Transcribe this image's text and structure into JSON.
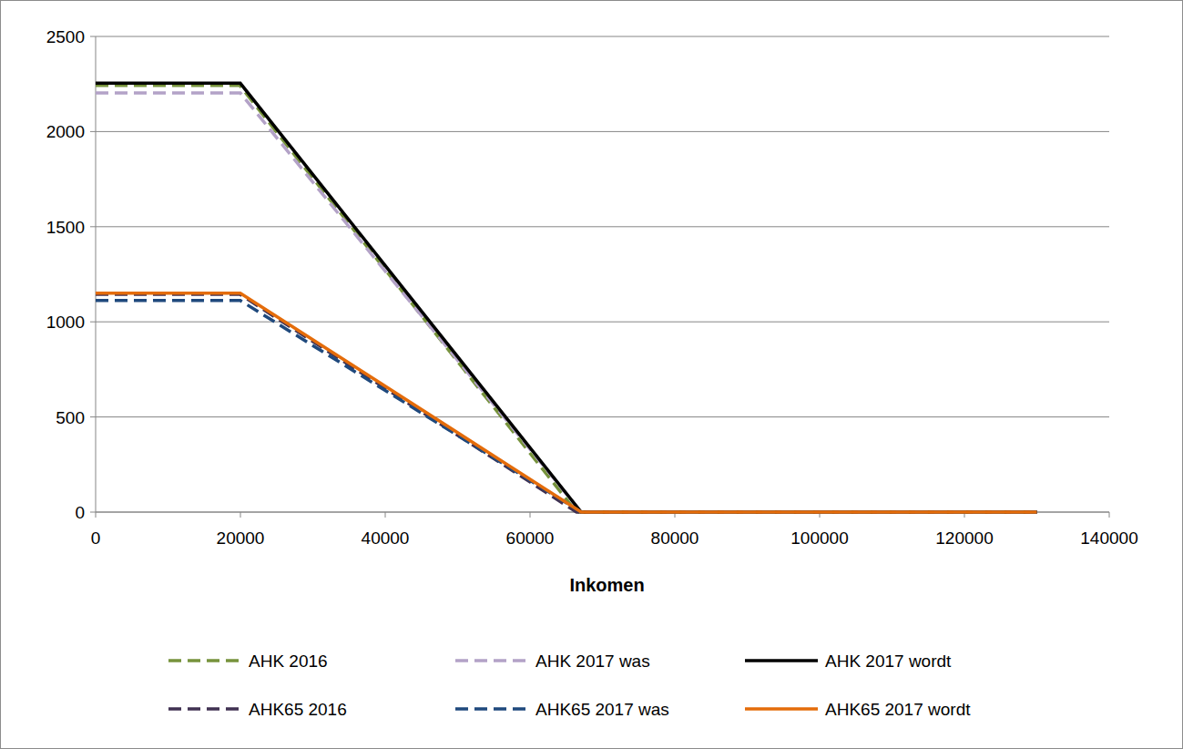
{
  "chart_data": {
    "type": "line",
    "x_label": "Inkomen",
    "xlim": [
      0,
      140000
    ],
    "xticks": [
      0,
      20000,
      40000,
      60000,
      80000,
      100000,
      120000,
      140000
    ],
    "ylim": [
      0,
      2500
    ],
    "yticks": [
      0,
      500,
      1000,
      1500,
      2000,
      2500
    ],
    "grid": true,
    "legend": "bottom",
    "series": [
      {
        "name": "AHK 2016",
        "color": "#77933c",
        "line_style": "dashed",
        "x": [
          0,
          19922,
          66417,
          130000
        ],
        "values": [
          2242,
          2242,
          0,
          0
        ]
      },
      {
        "name": "AHK 2017 was",
        "color": "#b3a2c7",
        "line_style": "dashed",
        "x": [
          0,
          19982,
          67068,
          130000
        ],
        "values": [
          2203,
          2203,
          0,
          0
        ]
      },
      {
        "name": "AHK 2017 wordt",
        "color": "#000000",
        "line_style": "solid",
        "x": [
          0,
          19982,
          67068,
          130000
        ],
        "values": [
          2254,
          2254,
          0,
          0
        ]
      },
      {
        "name": "AHK65 2016",
        "color": "#403152",
        "line_style": "dashed",
        "x": [
          0,
          19922,
          66417,
          130000
        ],
        "values": [
          1145,
          1145,
          0,
          0
        ]
      },
      {
        "name": "AHK65 2017 was",
        "color": "#1f497d",
        "line_style": "dashed",
        "x": [
          0,
          19982,
          67068,
          130000
        ],
        "values": [
          1112,
          1112,
          0,
          0
        ]
      },
      {
        "name": "AHK65 2017 wordt",
        "color": "#e46c0a",
        "line_style": "solid",
        "x": [
          0,
          19982,
          67068,
          130000
        ],
        "values": [
          1151,
          1151,
          0,
          0
        ]
      }
    ]
  }
}
